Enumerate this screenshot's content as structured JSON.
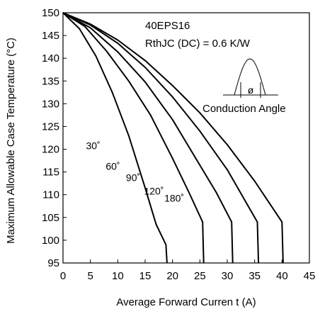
{
  "chart_data": {
    "type": "line",
    "title": "",
    "xlabel": "Average Forward Curren t (A)",
    "ylabel": "Maximum Allowable Case Temperature (°C)",
    "xlim": [
      0,
      45
    ],
    "ylim": [
      95,
      150
    ],
    "x_ticks": [
      "0",
      "5",
      "10",
      "15",
      "20",
      "25",
      "30",
      "35",
      "40",
      "45"
    ],
    "y_ticks": [
      "95",
      "100",
      "105",
      "110",
      "115",
      "120",
      "125",
      "130",
      "135",
      "140",
      "145",
      "150"
    ],
    "grid": false,
    "annotations": {
      "device": "40EPS16",
      "rth": "RthJC (DC) = 0.6 K/W",
      "conduction_angle": "Conduction Angle",
      "phi": "ø"
    },
    "series": [
      {
        "name": "30˚",
        "label_at": [
          4.2,
          120
        ],
        "x": [
          0,
          3,
          6,
          9,
          12,
          15,
          17,
          18.8,
          19
        ],
        "y": [
          150,
          146.5,
          140.5,
          132.5,
          123,
          111.5,
          103.5,
          99,
          95
        ]
      },
      {
        "name": "60˚",
        "label_at": [
          7.8,
          115.5
        ],
        "x": [
          0,
          4,
          8,
          12,
          16,
          20,
          23,
          25.5,
          25.7
        ],
        "y": [
          150,
          147,
          141.5,
          135,
          127.5,
          118,
          110.5,
          104,
          95
        ]
      },
      {
        "name": "90˚",
        "label_at": [
          11.5,
          113
        ],
        "x": [
          0,
          5,
          10,
          15,
          20,
          25,
          28,
          30.8,
          31
        ],
        "y": [
          150,
          146.7,
          141.4,
          134.8,
          126.5,
          116.5,
          110.5,
          104,
          95
        ]
      },
      {
        "name": "120˚",
        "label_at": [
          14.8,
          110
        ],
        "x": [
          0,
          5,
          10,
          15,
          20,
          25,
          30,
          35.5,
          35.7
        ],
        "y": [
          150,
          147.3,
          143.3,
          138,
          131.5,
          124,
          115.5,
          104,
          95
        ]
      },
      {
        "name": "180˚",
        "label_at": [
          18.5,
          108.5
        ],
        "x": [
          0,
          5,
          10,
          15,
          20,
          25,
          30,
          35,
          40,
          40.2
        ],
        "y": [
          150,
          147.5,
          144,
          139.5,
          134,
          128,
          121,
          113,
          104,
          95
        ]
      }
    ]
  }
}
